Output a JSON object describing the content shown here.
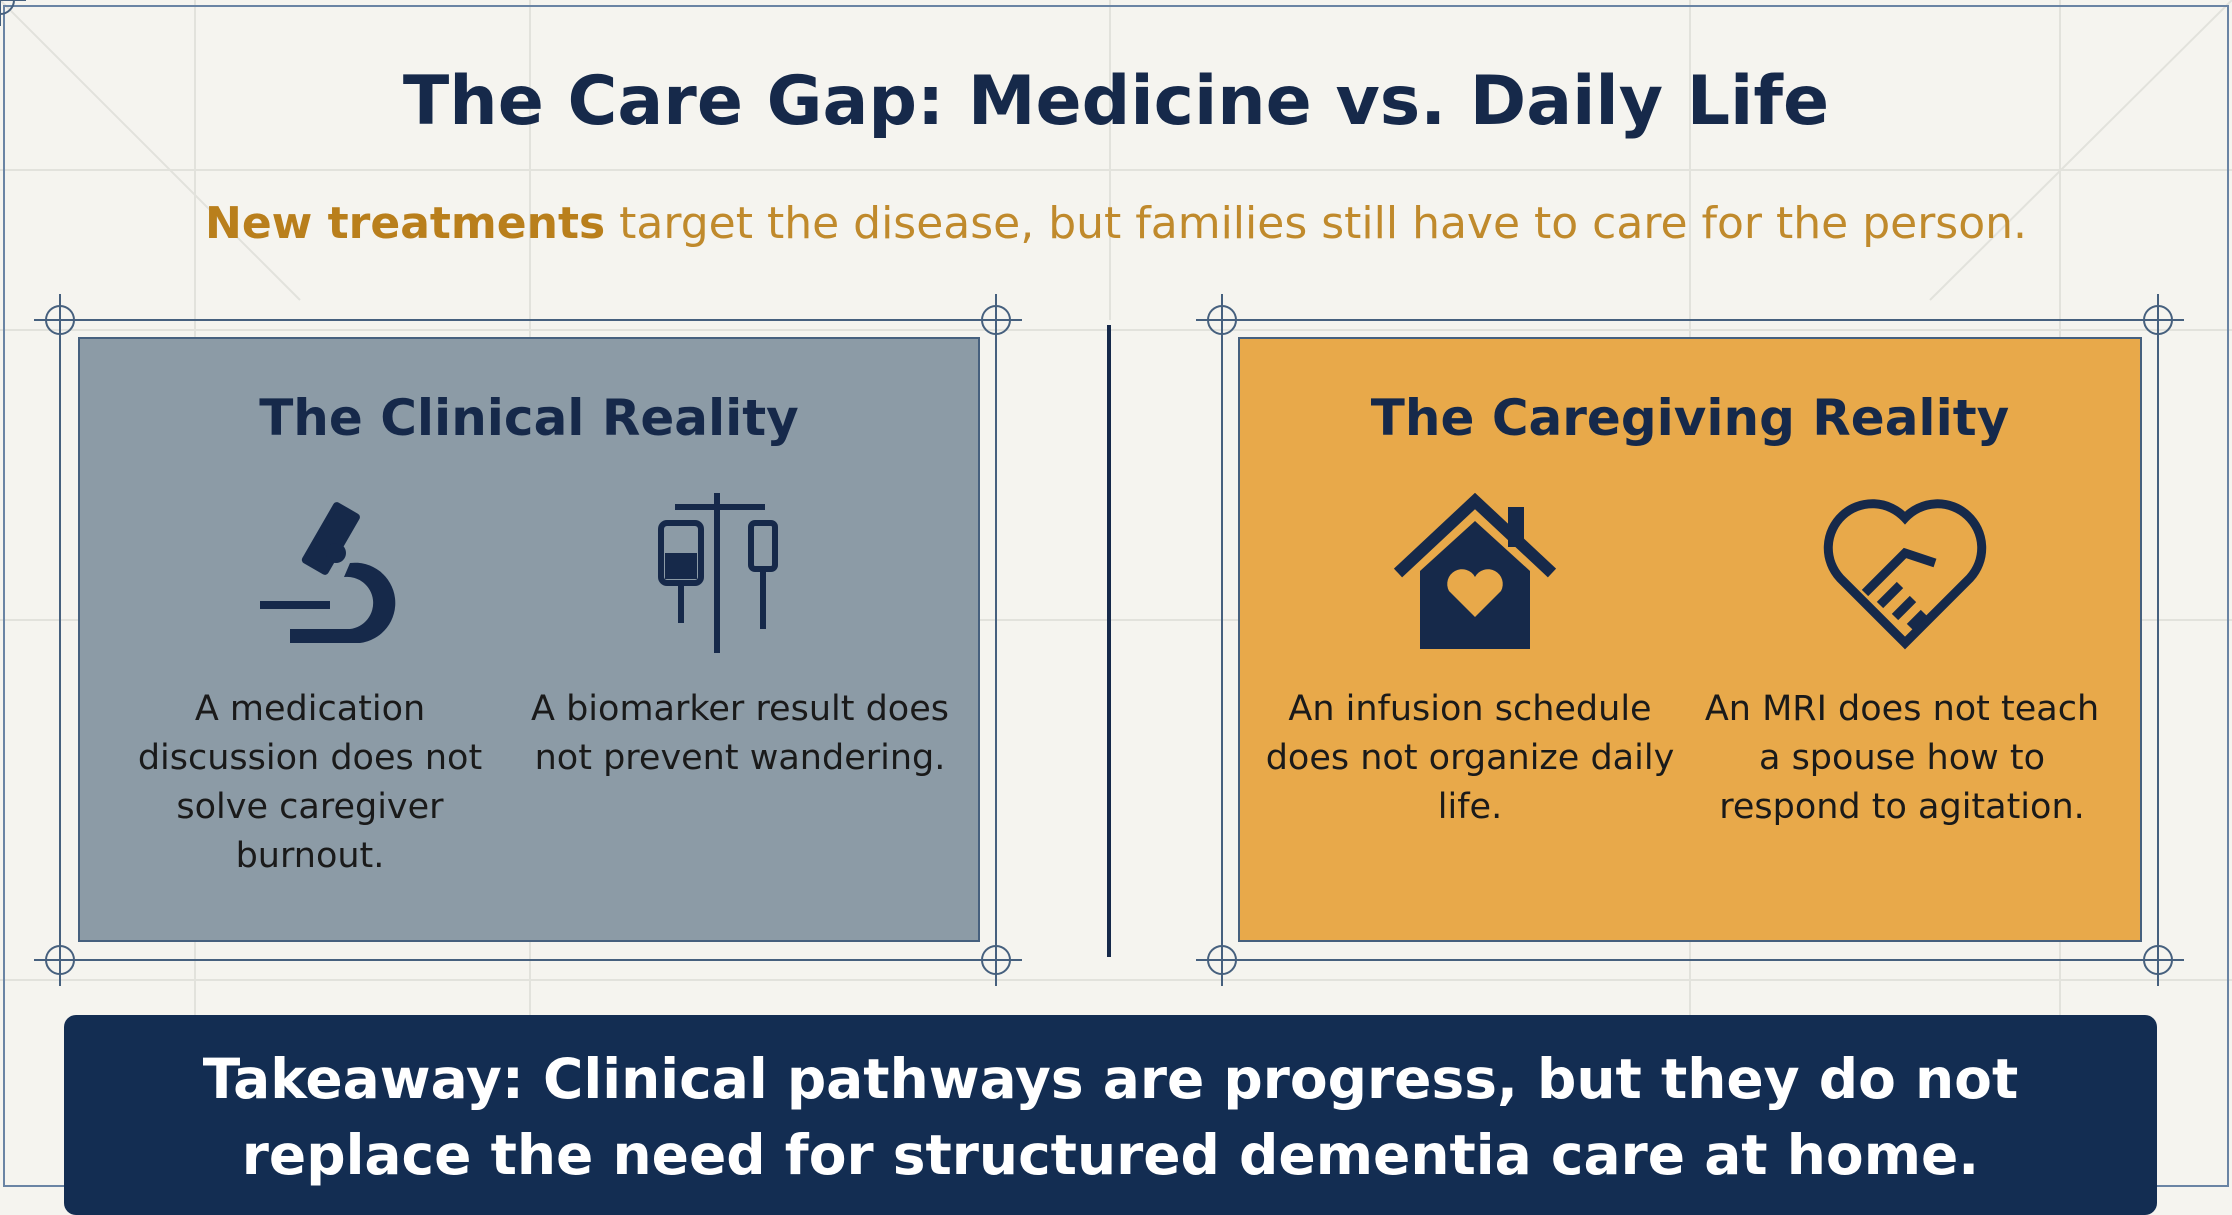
{
  "title": "The Care Gap: Medicine vs. Daily Life",
  "subtitle": {
    "emphasis": "New treatments",
    "rest": "target the disease, but families still have to care for the person."
  },
  "panels": [
    {
      "title": "The Clinical Reality",
      "items": [
        "A medication discussion does not solve caregiver burnout.",
        "A biomarker result does not prevent wandering."
      ]
    },
    {
      "title": "The Caregiving Reality",
      "items": [
        "An infusion schedule does not organize daily life.",
        "An MRI does not teach a spouse how to respond to agitation."
      ]
    }
  ],
  "takeaway": "Takeaway: Clinical pathways are progress, but they do not replace the need for structured dementia care at home."
}
